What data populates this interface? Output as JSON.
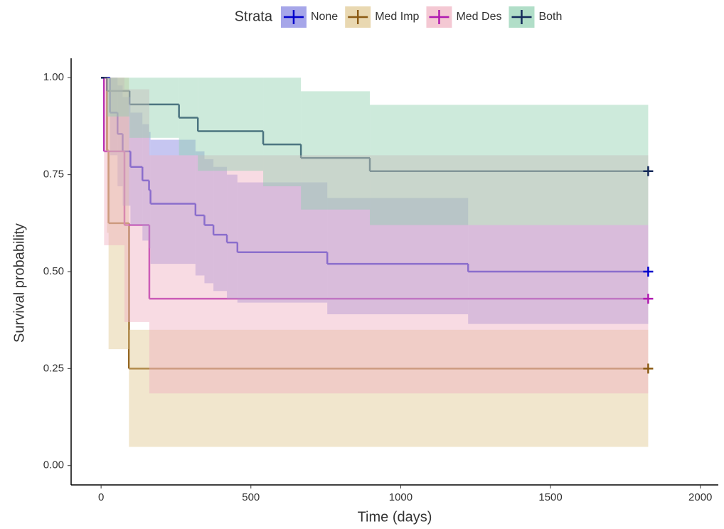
{
  "chart_data": {
    "type": "survival",
    "legend_title": "Strata",
    "x_label": "Time (days)",
    "y_label": "Survival probability",
    "xlim": [
      -100,
      2060
    ],
    "ylim": [
      -0.05,
      1.05
    ],
    "xticks": [
      0,
      500,
      1000,
      1500,
      2000
    ],
    "yticks": [
      {
        "value": 0,
        "label": "0.00"
      },
      0.25,
      {
        "value": 0.5,
        "label": "0.50"
      },
      0.75,
      {
        "value": 1,
        "label": "1.00"
      }
    ],
    "series": [
      {
        "name": "None",
        "color": "#0000cc",
        "fill": "#8080e0",
        "censor_x": 1826,
        "x": [
          0,
          30,
          55,
          72,
          98,
          138,
          160,
          165,
          315,
          345,
          375,
          420,
          455,
          755,
          1225
        ],
        "values": [
          1,
          0.91,
          0.855,
          0.81,
          0.77,
          0.735,
          0.71,
          0.675,
          0.645,
          0.62,
          0.595,
          0.575,
          0.55,
          0.52,
          0.5
        ],
        "upper": [
          1,
          1,
          0.98,
          0.95,
          0.91,
          0.88,
          0.86,
          0.84,
          0.81,
          0.79,
          0.77,
          0.75,
          0.73,
          0.69,
          0.62
        ],
        "lower": [
          1,
          0.8,
          0.72,
          0.67,
          0.62,
          0.58,
          0.56,
          0.52,
          0.49,
          0.47,
          0.45,
          0.43,
          0.42,
          0.39,
          0.365
        ]
      },
      {
        "name": "Med Imp",
        "color": "#8b5a14",
        "fill": "#e0c890",
        "censor_x": 1826,
        "x": [
          0,
          20,
          25,
          93
        ],
        "values": [
          1,
          0.8125,
          0.625,
          0.25
        ],
        "upper": [
          1,
          1,
          1,
          0.35
        ],
        "lower": [
          1,
          0.6,
          0.3,
          0.048
        ]
      },
      {
        "name": "Med Des",
        "color": "#b01ab0",
        "fill": "#f0b0c0",
        "censor_x": 1826,
        "x": [
          0,
          10,
          78,
          161
        ],
        "values": [
          1,
          0.81,
          0.62,
          0.43
        ],
        "upper": [
          1,
          1,
          0.97,
          0.8
        ],
        "lower": [
          1,
          0.568,
          0.37,
          0.186
        ]
      },
      {
        "name": "Both",
        "color": "#142a5a",
        "fill": "#90d0b0",
        "censor_x": 1826,
        "x": [
          0,
          20,
          95,
          260,
          323,
          541,
          667,
          897
        ],
        "values": [
          1,
          0.966,
          0.931,
          0.897,
          0.862,
          0.828,
          0.793,
          0.759
        ],
        "upper": [
          1,
          1,
          1,
          1,
          1,
          1,
          0.965,
          0.93
        ],
        "lower": [
          1,
          0.9,
          0.845,
          0.8,
          0.76,
          0.72,
          0.66,
          0.62
        ]
      }
    ]
  }
}
